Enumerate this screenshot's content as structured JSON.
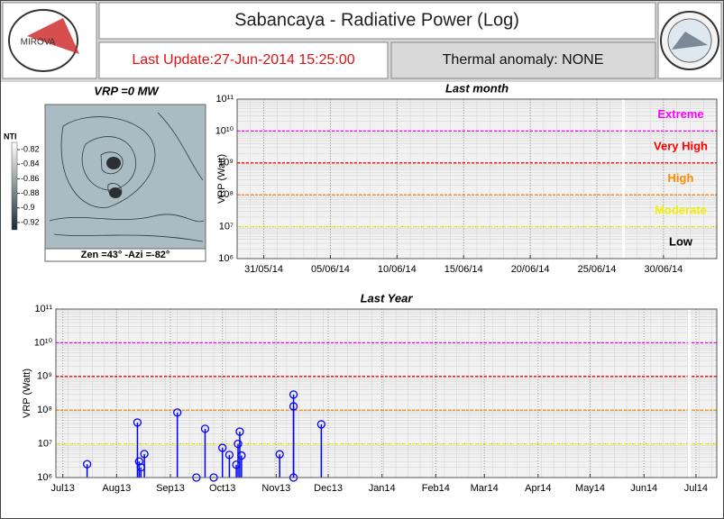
{
  "header": {
    "logo_text": "MIROVA",
    "title": "Sabancaya - Radiative Power (Log)",
    "last_update": "Last Update:27-Jun-2014 15:25:00",
    "thermal_anomaly": "Thermal anomaly: NONE"
  },
  "image_panel": {
    "title": "VRP =0 MW",
    "caption": "Zen =43° -Azi =-82°",
    "colorbar_label": "NTI",
    "colorbar_lim": [
      -0.93,
      -0.81
    ],
    "colorbar_ticks": [
      -0.82,
      -0.84,
      -0.86,
      -0.88,
      -0.9,
      -0.92
    ]
  },
  "chart_data": [
    {
      "type": "stem",
      "title": "Last month",
      "y_label": "VRP (Watt)",
      "y_scale": "log",
      "grid": true,
      "x": [],
      "values": [],
      "color": "#0000ff",
      "xlim": [
        "2014-05-29",
        "2014-07-04"
      ],
      "xticks": [
        {
          "value": "2014-05-31",
          "label": "31/05/14"
        },
        {
          "value": "2014-06-05",
          "label": "05/06/14"
        },
        {
          "value": "2014-06-10",
          "label": "10/06/14"
        },
        {
          "value": "2014-06-15",
          "label": "15/06/14"
        },
        {
          "value": "2014-06-20",
          "label": "20/06/14"
        },
        {
          "value": "2014-06-25",
          "label": "25/06/14"
        },
        {
          "value": "2014-06-30",
          "label": "30/06/14"
        }
      ],
      "ylim": [
        1000000,
        100000000000
      ],
      "yticks": [
        {
          "value": 1000000,
          "label": "10⁶"
        },
        {
          "value": 10000000,
          "label": "10⁷"
        },
        {
          "value": 100000000,
          "label": "10⁸"
        },
        {
          "value": 1000000000,
          "label": "10⁹"
        },
        {
          "value": 10000000000,
          "label": "10¹⁰"
        },
        {
          "value": 100000000000,
          "label": "10¹¹"
        }
      ],
      "current_date": "2014-06-27",
      "levels": [
        {
          "label": "Extreme",
          "value": 10000000000,
          "color": "#ff00ff"
        },
        {
          "label": "Very High",
          "value": 1000000000,
          "color": "#ff0000"
        },
        {
          "label": "High",
          "value": 100000000,
          "color": "#ff8c00"
        },
        {
          "label": "Moderate",
          "value": 10000000,
          "color": "#f0f000"
        },
        {
          "label": "Low",
          "color": "#000000"
        }
      ]
    },
    {
      "type": "stem",
      "title": "Last Year",
      "y_label": "VRP (Watt)",
      "y_scale": "log",
      "grid": true,
      "x": [
        "2013-07-15",
        "2013-08-13",
        "2013-08-14",
        "2013-08-15",
        "2013-08-17",
        "2013-09-05",
        "2013-09-16",
        "2013-09-21",
        "2013-09-26",
        "2013-10-01",
        "2013-10-05",
        "2013-10-09",
        "2013-10-10",
        "2013-10-11",
        "2013-10-12",
        "2013-11-03",
        "2013-11-11",
        "2013-11-11",
        "2013-11-11",
        "2013-11-27"
      ],
      "values": [
        2500000,
        43000000,
        3000000,
        2000000,
        5000000,
        85000000,
        1000000,
        28000000,
        1000000,
        7600000,
        4700000,
        2400000,
        10000000,
        23000000,
        4500000,
        4900000,
        290000000,
        130000000,
        1000000,
        38000000
      ],
      "color": "#0000ff",
      "xlim": [
        "2013-06-27",
        "2014-07-13"
      ],
      "xticks": [
        {
          "value": "2013-07-01",
          "label": "Jul13"
        },
        {
          "value": "2013-08-01",
          "label": "Aug13"
        },
        {
          "value": "2013-09-01",
          "label": "Sep13"
        },
        {
          "value": "2013-10-01",
          "label": "Oct13"
        },
        {
          "value": "2013-11-01",
          "label": "Nov13"
        },
        {
          "value": "2013-12-01",
          "label": "Dec13"
        },
        {
          "value": "2014-01-01",
          "label": "Jan14"
        },
        {
          "value": "2014-02-01",
          "label": "Feb14"
        },
        {
          "value": "2014-03-01",
          "label": "Mar14"
        },
        {
          "value": "2014-04-01",
          "label": "Apr14"
        },
        {
          "value": "2014-05-01",
          "label": "May14"
        },
        {
          "value": "2014-06-01",
          "label": "Jun14"
        },
        {
          "value": "2014-07-01",
          "label": "Jul14"
        }
      ],
      "ylim": [
        1000000,
        100000000000
      ],
      "yticks": [
        {
          "value": 1000000,
          "label": "10⁶"
        },
        {
          "value": 10000000,
          "label": "10⁷"
        },
        {
          "value": 100000000,
          "label": "10⁸"
        },
        {
          "value": 1000000000,
          "label": "10⁹"
        },
        {
          "value": 10000000000,
          "label": "10¹⁰"
        },
        {
          "value": 100000000000,
          "label": "10¹¹"
        }
      ],
      "current_date": "2014-06-27",
      "level_lines": [
        {
          "value": 10000000000,
          "color": "#ff00ff"
        },
        {
          "value": 1000000000,
          "color": "#ff0000"
        },
        {
          "value": 100000000,
          "color": "#ff8c00"
        },
        {
          "value": 10000000,
          "color": "#f0f000"
        }
      ]
    }
  ]
}
